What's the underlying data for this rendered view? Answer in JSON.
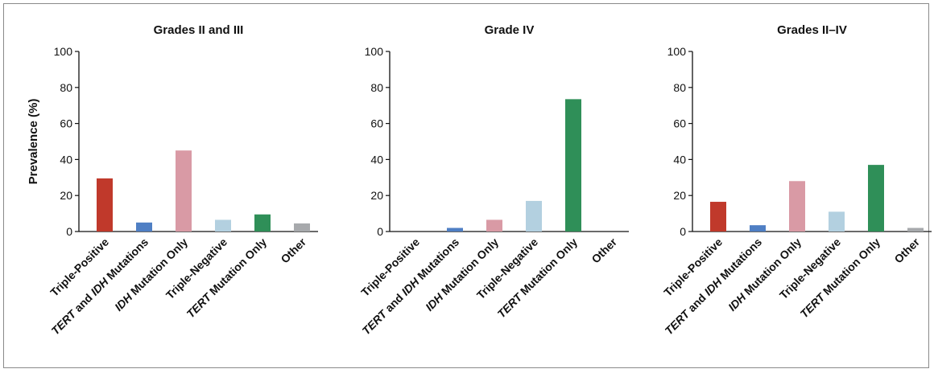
{
  "chart_data": [
    {
      "type": "bar",
      "title": "Grades II and III",
      "ylabel": "Prevalence (%)",
      "xlabel": "",
      "ylim": [
        0,
        100
      ],
      "yticks": [
        "0",
        "20",
        "40",
        "60",
        "80",
        "100"
      ],
      "categories": [
        {
          "label": "Triple-Positive"
        },
        {
          "italic": "TERT",
          "label": " and ",
          "italic2": "IDH",
          "label2": " Mutations"
        },
        {
          "italic": "IDH",
          "label": " Mutation Only"
        },
        {
          "label": "Triple-Negative"
        },
        {
          "italic": "TERT",
          "label": " Mutation Only"
        },
        {
          "label": "Other"
        }
      ],
      "values": [
        29.5,
        5,
        45,
        6.5,
        9.5,
        4.5
      ],
      "colors": [
        "#c0392b",
        "#4f7fc4",
        "#d99aa5",
        "#b3d0e0",
        "#2f8f58",
        "#a7a9ac"
      ]
    },
    {
      "type": "bar",
      "title": "Grade IV",
      "ylabel": "",
      "xlabel": "",
      "ylim": [
        0,
        100
      ],
      "yticks": [
        "0",
        "20",
        "40",
        "60",
        "80",
        "100"
      ],
      "categories": [
        {
          "label": "Triple-Positive"
        },
        {
          "italic": "TERT",
          "label": " and ",
          "italic2": "IDH",
          "label2": " Mutations"
        },
        {
          "italic": "IDH",
          "label": " Mutation Only"
        },
        {
          "label": "Triple-Negative"
        },
        {
          "italic": "TERT",
          "label": " Mutation Only"
        },
        {
          "label": "Other"
        }
      ],
      "values": [
        0,
        2,
        6.5,
        17,
        73.5,
        0
      ],
      "colors": [
        "#c0392b",
        "#4f7fc4",
        "#d99aa5",
        "#b3d0e0",
        "#2f8f58",
        "#a7a9ac"
      ]
    },
    {
      "type": "bar",
      "title": "Grades II–IV",
      "ylabel": "",
      "xlabel": "",
      "ylim": [
        0,
        100
      ],
      "yticks": [
        "0",
        "20",
        "40",
        "60",
        "80",
        "100"
      ],
      "categories": [
        {
          "label": "Triple-Positive"
        },
        {
          "italic": "TERT",
          "label": " and ",
          "italic2": "IDH",
          "label2": " Mutations"
        },
        {
          "italic": "IDH",
          "label": " Mutation Only"
        },
        {
          "label": "Triple-Negative"
        },
        {
          "italic": "TERT",
          "label": " Mutation Only"
        },
        {
          "label": "Other"
        }
      ],
      "values": [
        16.5,
        3.5,
        28,
        11,
        37,
        2
      ],
      "colors": [
        "#c0392b",
        "#4f7fc4",
        "#d99aa5",
        "#b3d0e0",
        "#2f8f58",
        "#a7a9ac"
      ]
    }
  ]
}
